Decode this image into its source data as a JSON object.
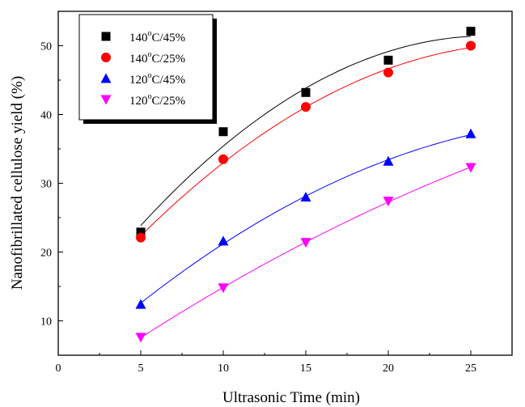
{
  "chart_data": {
    "type": "scatter",
    "xlabel": "Ultrasonic Time (min)",
    "ylabel": "Nanofibrillated cellulose yield (%)",
    "xlim": [
      0,
      27.5
    ],
    "ylim": [
      5,
      55
    ],
    "xticks": [
      0,
      5,
      10,
      15,
      20,
      25
    ],
    "yticks": [
      10,
      20,
      30,
      40,
      50
    ],
    "x_tick_labels": [
      "0",
      "5",
      "10",
      "15",
      "20",
      "25"
    ],
    "y_tick_labels": [
      "10",
      "20",
      "30",
      "40",
      "50"
    ],
    "grid": false,
    "legend_position": "top-left",
    "x": [
      5,
      10,
      15,
      20,
      25
    ],
    "series": [
      {
        "name": "140°C/45%",
        "name_base": "140",
        "name_sup": "o",
        "name_rest": "C/45%",
        "marker": "square",
        "color": "#000000",
        "line_color": "#000000",
        "values": [
          22.9,
          37.5,
          43.2,
          47.9,
          52.1
        ]
      },
      {
        "name": "140°C/25%",
        "name_base": "140",
        "name_sup": "o",
        "name_rest": "C/25%",
        "marker": "circle",
        "color": "#ff0000",
        "line_color": "#ff0000",
        "values": [
          22.1,
          33.5,
          41.1,
          46.1,
          50.0
        ]
      },
      {
        "name": "120°C/45%",
        "name_base": "120",
        "name_sup": "o",
        "name_rest": "C/45%",
        "marker": "triangle-up",
        "color": "#0000ff",
        "line_color": "#0000ff",
        "values": [
          12.4,
          21.6,
          28.0,
          33.2,
          37.2
        ]
      },
      {
        "name": "120°C/25%",
        "name_base": "120",
        "name_sup": "o",
        "name_rest": "C/25%",
        "marker": "triangle-down",
        "color": "#ff00ff",
        "line_color": "#ff00ff",
        "values": [
          7.6,
          14.8,
          21.4,
          27.4,
          32.3
        ]
      }
    ]
  }
}
